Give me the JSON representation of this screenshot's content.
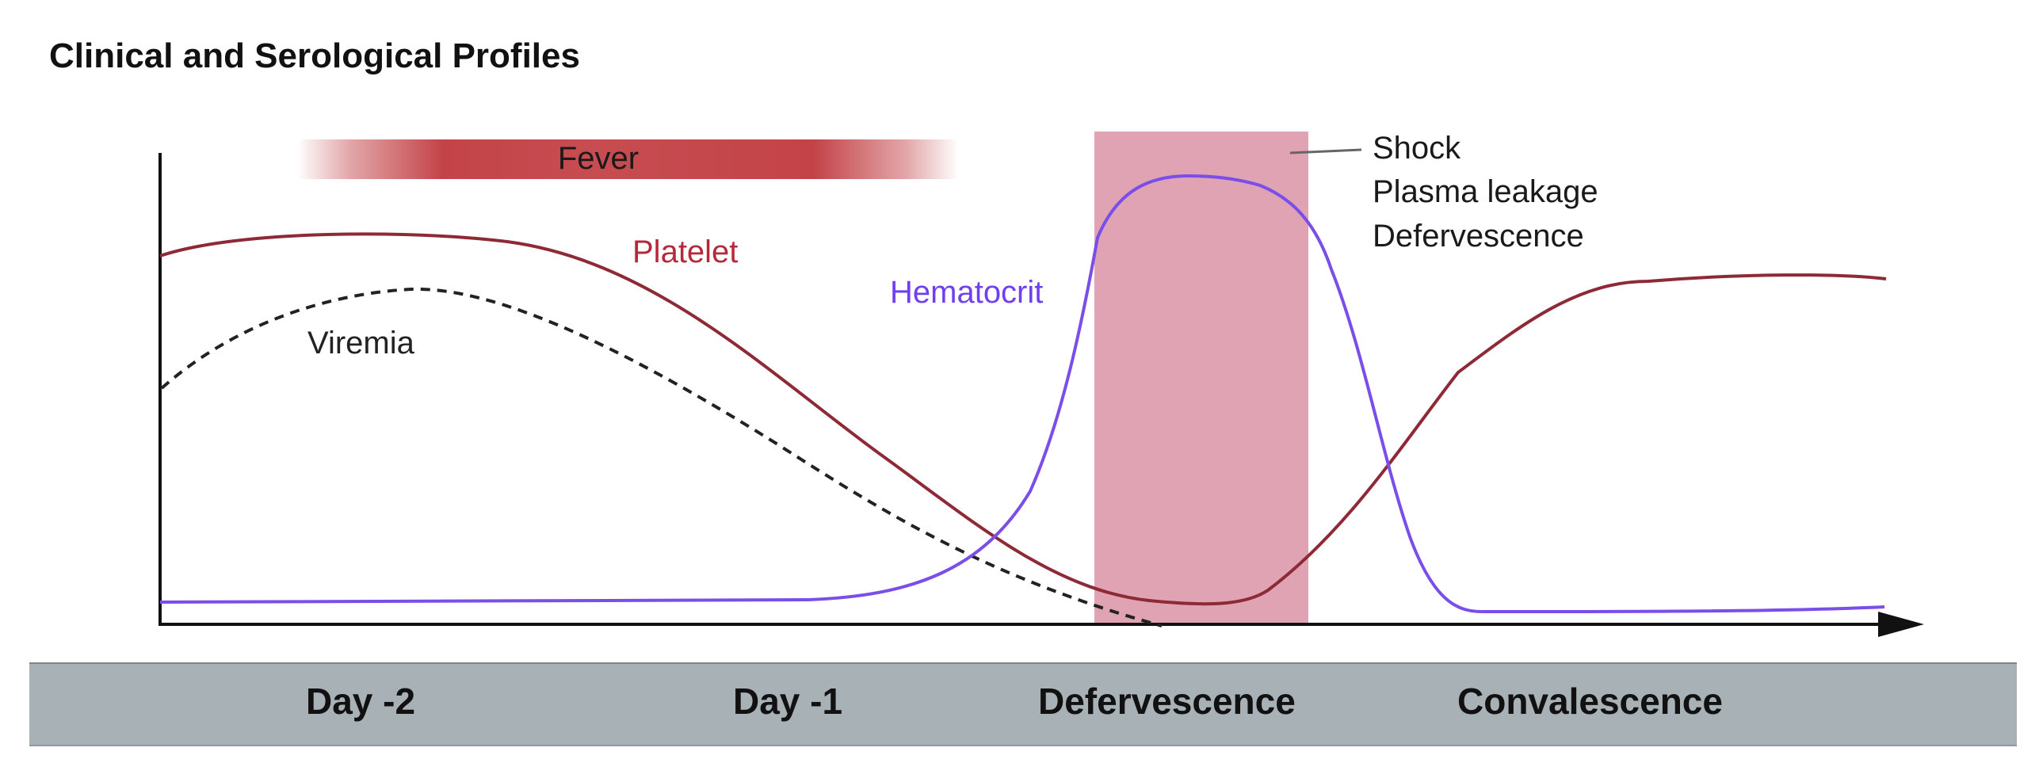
{
  "title": "Clinical and Serological Profiles",
  "fever_label": "Fever",
  "curves": {
    "platelet": "Platelet",
    "hematocrit": "Hematocrit",
    "viremia": "Viremia"
  },
  "critical_phase": {
    "items": [
      "Shock",
      "Plasma leakage",
      "Defervescence"
    ]
  },
  "stages": [
    "Day -2",
    "Day -1",
    "Defervescence",
    "Convalescence"
  ],
  "colors": {
    "platelet": "#8e2a36",
    "hematocrit": "#7a4ee8",
    "viremia": "#222222",
    "fever": "#c0393e",
    "critical_band": "#dfa3b3",
    "timeline_band": "#a8b1b6"
  }
}
